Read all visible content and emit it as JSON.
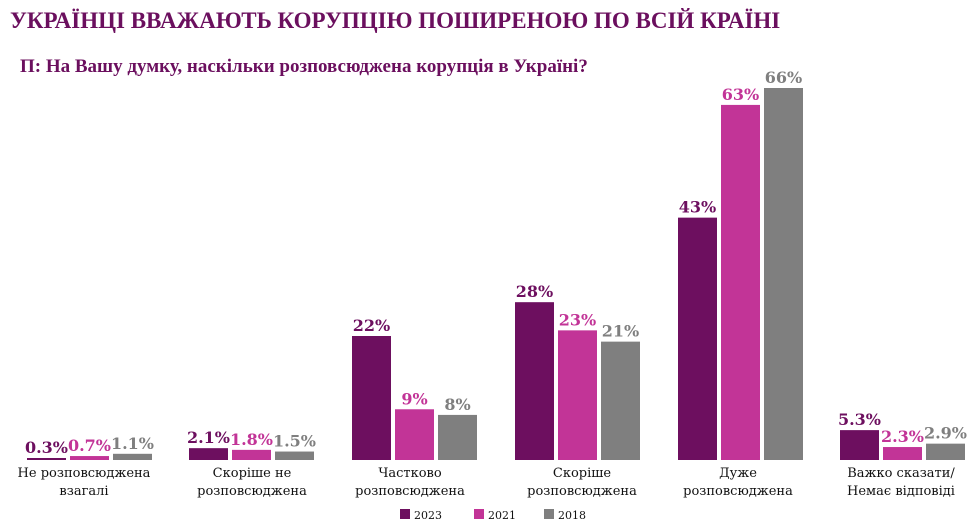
{
  "header": {
    "title": "УКРАЇНЦІ ВВАЖАЮТЬ КОРУПЦІЮ ПОШИРЕНОЮ ПО ВСІЙ КРАЇНІ",
    "subtitle": "П: На Вашу думку, наскільки розповсюджена корупція в Україні?"
  },
  "chart_data": {
    "type": "bar",
    "title": "УКРАЇНЦІ ВВАЖАЮТЬ КОРУПЦІЮ ПОШИРЕНОЮ ПО ВСІЙ КРАЇНІ",
    "subtitle": "П: На Вашу думку, наскільки розповсюджена корупція в Україні?",
    "xlabel": "",
    "ylabel": "",
    "ylim": [
      0,
      66
    ],
    "grid": false,
    "legend_position": "bottom-center",
    "categories": [
      [
        "Не розповсюджена",
        "взагалі"
      ],
      [
        "Скоріше не",
        "розповсюджена"
      ],
      [
        "Частково",
        "розповсюджена"
      ],
      [
        "Скоріше",
        "розповсюджена"
      ],
      [
        "Дуже",
        "розповсюджена"
      ],
      [
        "Важко сказати/",
        "Немає відповіді"
      ]
    ],
    "series": [
      {
        "name": "2023",
        "color": "#6d0f5f",
        "values": [
          0.3,
          2.1,
          22,
          28,
          43,
          5.3
        ],
        "labels": [
          "0.3%",
          "2.1%",
          "22%",
          "28%",
          "43%",
          "5.3%"
        ]
      },
      {
        "name": "2021",
        "color": "#c23497",
        "values": [
          0.7,
          1.8,
          9,
          23,
          63,
          2.3
        ],
        "labels": [
          "0.7%",
          "1.8%",
          "9%",
          "23%",
          "63%",
          "2.3%"
        ]
      },
      {
        "name": "2018",
        "color": "#7f7f7f",
        "values": [
          1.1,
          1.5,
          8,
          21,
          66,
          2.9
        ],
        "labels": [
          "1.1%",
          "1.5%",
          "8%",
          "21%",
          "66%",
          "2.9%"
        ]
      }
    ]
  }
}
